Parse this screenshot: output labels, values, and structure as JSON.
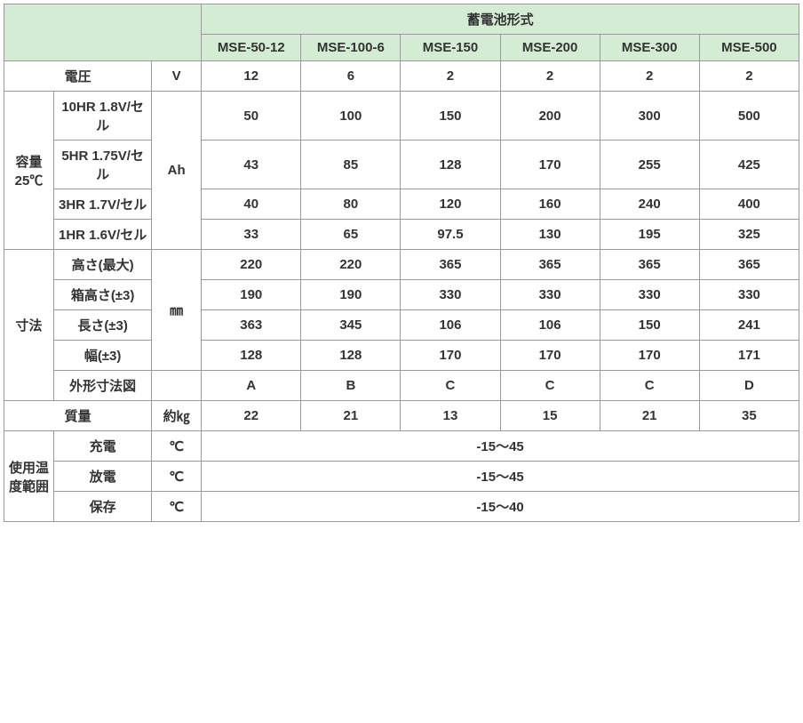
{
  "header": {
    "group_title": "蓄電池形式",
    "models": [
      "MSE-50-12",
      "MSE-100-6",
      "MSE-150",
      "MSE-200",
      "MSE-300",
      "MSE-500"
    ]
  },
  "voltage": {
    "label": "電圧",
    "unit": "V",
    "values": [
      "12",
      "6",
      "2",
      "2",
      "2",
      "2"
    ]
  },
  "capacity": {
    "label": "容量25℃",
    "unit": "Ah",
    "rows": [
      {
        "label": "10HR 1.8V/セル",
        "values": [
          "50",
          "100",
          "150",
          "200",
          "300",
          "500"
        ]
      },
      {
        "label": "5HR 1.75V/セル",
        "values": [
          "43",
          "85",
          "128",
          "170",
          "255",
          "425"
        ]
      },
      {
        "label": "3HR 1.7V/セル",
        "values": [
          "40",
          "80",
          "120",
          "160",
          "240",
          "400"
        ]
      },
      {
        "label": "1HR 1.6V/セル",
        "values": [
          "33",
          "65",
          "97.5",
          "130",
          "195",
          "325"
        ]
      }
    ]
  },
  "dimensions": {
    "label": "寸法",
    "unit": "㎜",
    "rows": [
      {
        "label": "高さ(最大)",
        "values": [
          "220",
          "220",
          "365",
          "365",
          "365",
          "365"
        ]
      },
      {
        "label": "箱高さ(±3)",
        "values": [
          "190",
          "190",
          "330",
          "330",
          "330",
          "330"
        ]
      },
      {
        "label": "長さ(±3)",
        "values": [
          "363",
          "345",
          "106",
          "106",
          "150",
          "241"
        ]
      },
      {
        "label": "幅(±3)",
        "values": [
          "128",
          "128",
          "170",
          "170",
          "170",
          "171"
        ]
      }
    ],
    "shape_row": {
      "label": "外形寸法図",
      "values": [
        "A",
        "B",
        "C",
        "C",
        "C",
        "D"
      ]
    }
  },
  "mass": {
    "label": "質量",
    "unit": "約㎏",
    "values": [
      "22",
      "21",
      "13",
      "15",
      "21",
      "35"
    ]
  },
  "temp": {
    "label": "使用温度範囲",
    "unit": "℃",
    "rows": [
      {
        "label": "充電",
        "value": "-15～45"
      },
      {
        "label": "放電",
        "value": "-15～45"
      },
      {
        "label": "保存",
        "value": "-15～40"
      }
    ]
  }
}
